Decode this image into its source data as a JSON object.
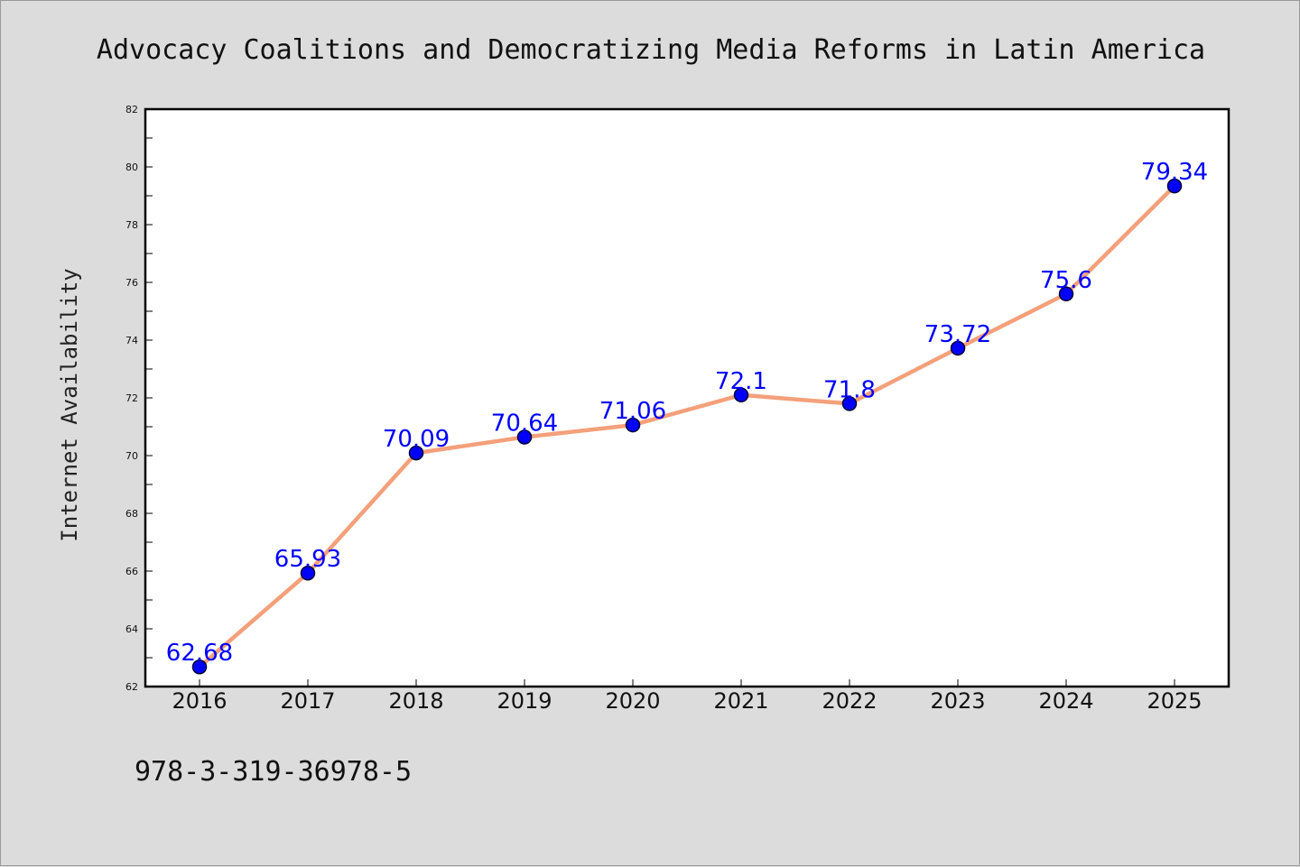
{
  "chart_data": {
    "type": "line",
    "title": "Advocacy Coalitions and Democratizing Media Reforms in Latin America",
    "xlabel": "",
    "ylabel": "Internet Availability",
    "categories": [
      "2016",
      "2017",
      "2018",
      "2019",
      "2020",
      "2021",
      "2022",
      "2023",
      "2024",
      "2025"
    ],
    "series": [
      {
        "values": [
          62.68,
          65.93,
          70.09,
          70.64,
          71.06,
          72.1,
          71.8,
          73.72,
          75.6,
          79.34
        ],
        "data_labels": [
          "62.68",
          "65.93",
          "70.09",
          "70.64",
          "71.06",
          "72.1",
          "71.8",
          "73.72",
          "75.6",
          "79.34"
        ]
      }
    ],
    "ylim": [
      62,
      82
    ],
    "yticks": [
      "62",
      "64",
      "66",
      "68",
      "70",
      "72",
      "74",
      "76",
      "78",
      "80",
      "82"
    ],
    "grid": false,
    "line_color": "#f4a07a",
    "marker_color": "#0000ff",
    "label_color": "#0000ff"
  },
  "footer": {
    "isbn": "978-3-319-36978-5"
  }
}
